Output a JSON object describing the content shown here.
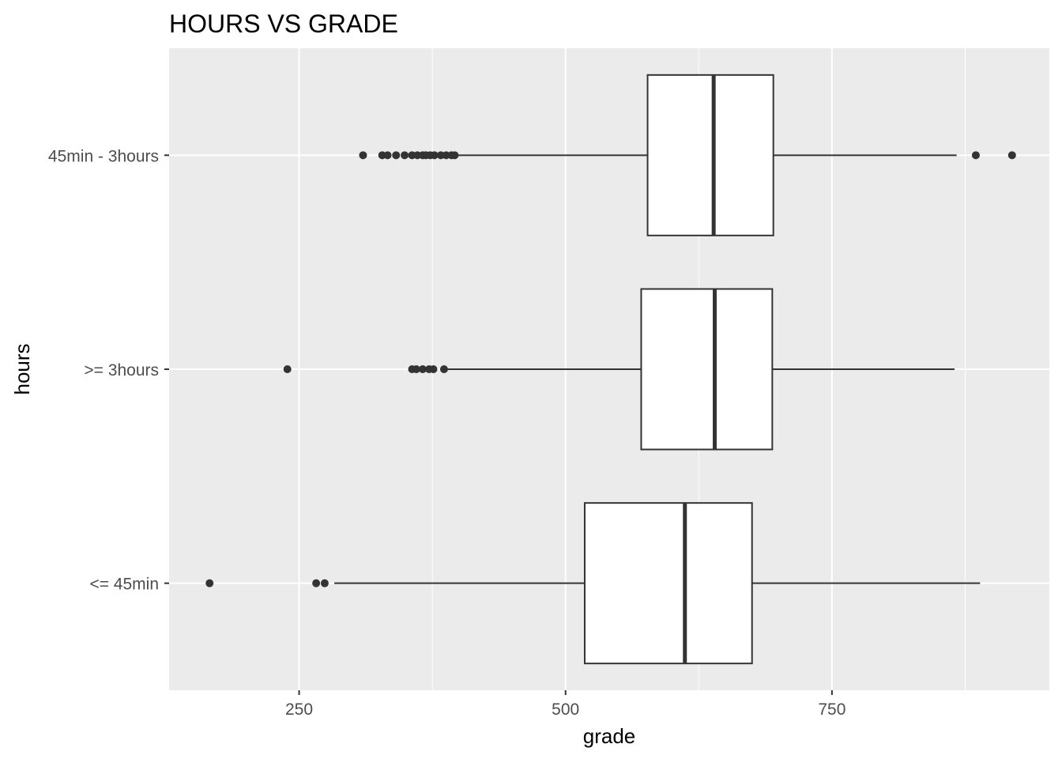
{
  "chart_data": {
    "type": "boxplot",
    "orientation": "horizontal",
    "title": "HOURS VS GRADE",
    "xlabel": "grade",
    "ylabel": "hours",
    "xlim": [
      128,
      954
    ],
    "x_ticks": [
      250,
      500,
      750
    ],
    "grid": true,
    "categories": [
      "45min - 3hours",
      ">= 3hours",
      "<= 45min"
    ],
    "boxes": [
      {
        "category": "45min - 3hours",
        "whisker_low": 398,
        "q1": 577,
        "median": 639,
        "q3": 695,
        "whisker_high": 867,
        "outliers": [
          310,
          328,
          333,
          341,
          349,
          356,
          361,
          366,
          369,
          373,
          377,
          383,
          388,
          393,
          396,
          885,
          919
        ]
      },
      {
        "category": ">= 3hours",
        "whisker_low": 386,
        "q1": 571,
        "median": 640,
        "q3": 694,
        "whisker_high": 865,
        "outliers": [
          239,
          356,
          360,
          366,
          372,
          376,
          386
        ]
      },
      {
        "category": "<= 45min",
        "whisker_low": 283,
        "q1": 518,
        "median": 612,
        "q3": 675,
        "whisker_high": 889,
        "outliers": [
          166,
          266,
          274
        ]
      }
    ],
    "colors": {
      "panel": "#ebebeb",
      "grid": "#ffffff",
      "box_fill": "#ffffff",
      "stroke": "#333333",
      "tick_text": "#4d4d4d"
    }
  }
}
